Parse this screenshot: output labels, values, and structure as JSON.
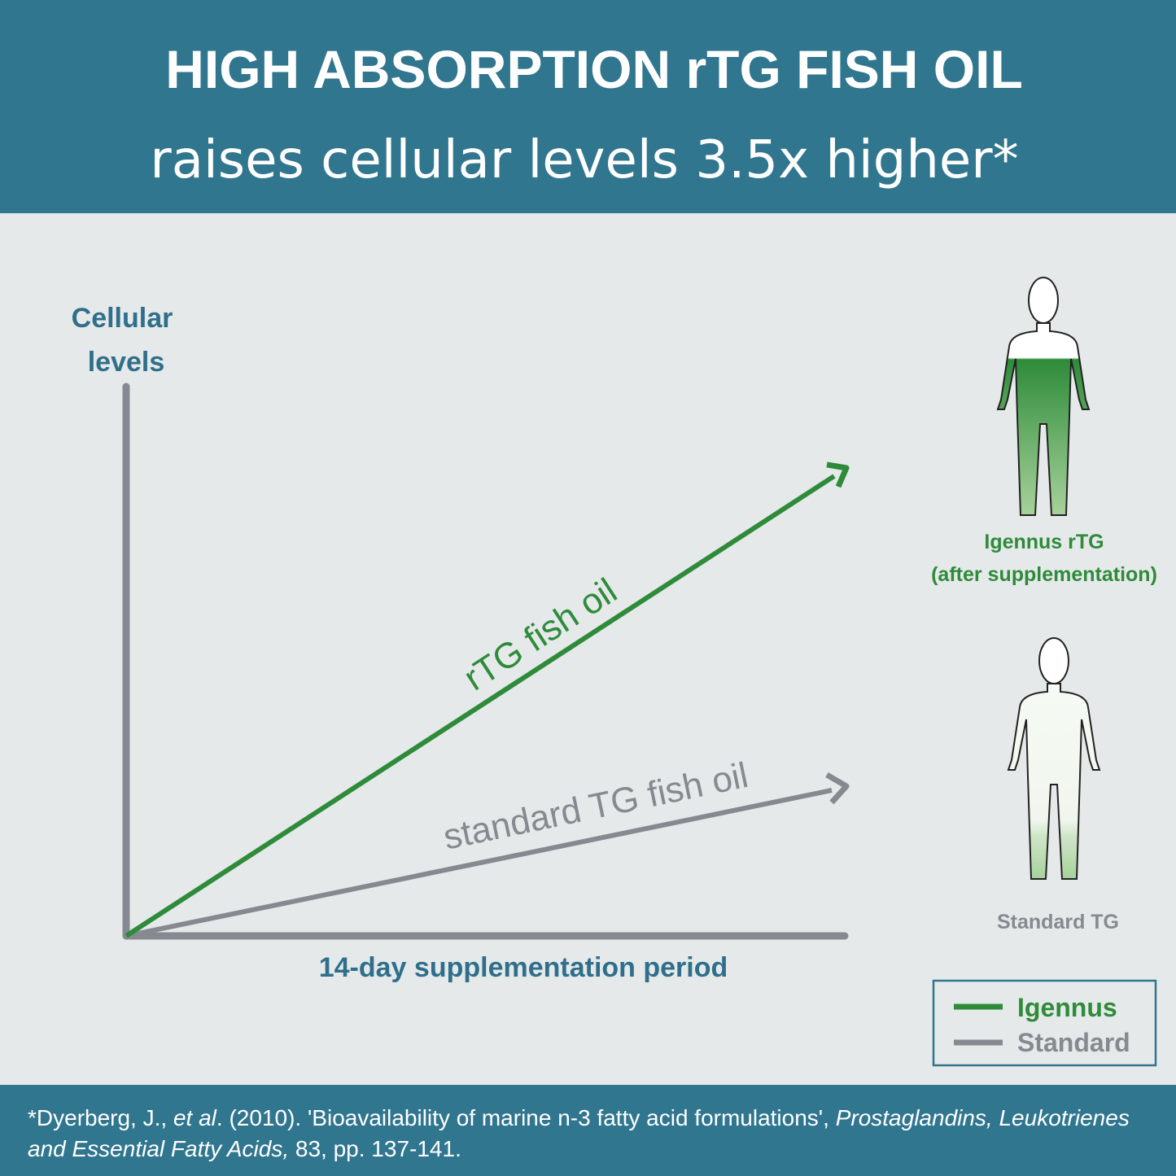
{
  "header": {
    "title": "HIGH ABSORPTION rTG FISH OIL",
    "subtitle": "raises cellular levels 3.5x higher*"
  },
  "graph": {
    "y_axis_label": [
      "Cellular",
      "levels"
    ],
    "x_axis_label": "14-day supplementation period",
    "lines": [
      {
        "label": "rTG fish oil"
      },
      {
        "label": "standard TG fish oil"
      }
    ]
  },
  "figures": [
    {
      "caption": [
        "Igennus rTG",
        "(after supplementation)"
      ]
    },
    {
      "caption": [
        "Standard TG"
      ]
    }
  ],
  "legend": [
    "Igennus",
    "Standard"
  ],
  "footnote": [
    "*Dyerberg, J., ",
    "et al",
    ". (2010). 'Bioavailability of marine n-3 fatty acid formulations', ",
    "Prostaglandins, Leukotrienes and Essential Fatty Acids,",
    " 83, pp. 137-141."
  ]
}
